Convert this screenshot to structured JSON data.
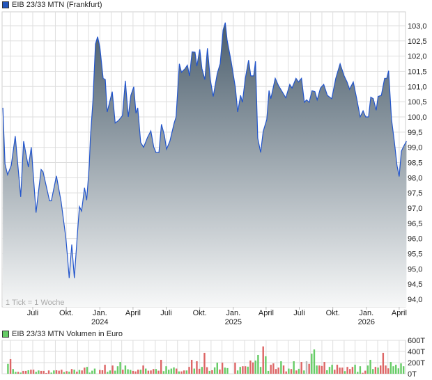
{
  "chart_data": [
    {
      "type": "area",
      "title": "EIB 23/33 MTN (Frankfurt)",
      "note": "1 Tick = 1 Woche",
      "colors": {
        "line": "#2255cc",
        "fill_top": "#4a5d6c",
        "fill_bottom": "#f7f8f8",
        "legend": "#2255bb"
      },
      "ylim": [
        93.75,
        103.45
      ],
      "yticks": [
        "94,0",
        "94,5",
        "95,0",
        "95,5",
        "96,0",
        "96,5",
        "97,0",
        "97,5",
        "98,0",
        "98,5",
        "99,0",
        "99,5",
        "100,0",
        "100,5",
        "101,0",
        "101,5",
        "102,0",
        "102,5",
        "103,0"
      ],
      "xticks": [
        {
          "date": "2023-07-01",
          "label": "Juli",
          "year": ""
        },
        {
          "date": "2023-10-01",
          "label": "Okt.",
          "year": ""
        },
        {
          "date": "2024-01-01",
          "label": "Jan.",
          "year": "2024"
        },
        {
          "date": "2024-04-01",
          "label": "April",
          "year": ""
        },
        {
          "date": "2024-07-01",
          "label": "Juli",
          "year": ""
        },
        {
          "date": "2024-10-01",
          "label": "Okt.",
          "year": ""
        },
        {
          "date": "2025-01-01",
          "label": "Jan.",
          "year": "2025"
        },
        {
          "date": "2025-04-01",
          "label": "April",
          "year": ""
        },
        {
          "date": "2025-07-01",
          "label": "Juli",
          "year": ""
        },
        {
          "date": "2025-10-01",
          "label": "Okt.",
          "year": ""
        },
        {
          "date": "2026-01-01",
          "label": "Jan.",
          "year": "2026"
        },
        {
          "date": "2026-04-01",
          "label": "April",
          "year": ""
        }
      ],
      "grid": true,
      "series": [
        [
          "2023-04-10",
          100.3
        ],
        [
          "2023-04-16",
          98.45
        ],
        [
          "2023-04-23",
          98.1
        ],
        [
          "2023-05-03",
          98.4
        ],
        [
          "2023-05-14",
          99.37
        ],
        [
          "2023-05-29",
          97.37
        ],
        [
          "2023-06-06",
          99.2
        ],
        [
          "2023-06-19",
          98.35
        ],
        [
          "2023-06-27",
          99.0
        ],
        [
          "2023-07-10",
          96.85
        ],
        [
          "2023-07-24",
          98.27
        ],
        [
          "2023-07-29",
          98.2
        ],
        [
          "2023-08-16",
          97.24
        ],
        [
          "2023-08-21",
          97.24
        ],
        [
          "2023-09-04",
          98.06
        ],
        [
          "2023-09-17",
          97.2
        ],
        [
          "2023-09-30",
          96.0
        ],
        [
          "2023-10-05",
          95.3
        ],
        [
          "2023-10-09",
          94.7
        ],
        [
          "2023-10-16",
          95.8
        ],
        [
          "2023-10-23",
          94.7
        ],
        [
          "2023-11-01",
          96.25
        ],
        [
          "2023-11-06",
          97.05
        ],
        [
          "2023-11-12",
          96.9
        ],
        [
          "2023-11-20",
          97.67
        ],
        [
          "2023-11-26",
          97.26
        ],
        [
          "2023-12-03",
          98.4
        ],
        [
          "2023-12-06",
          99.3
        ],
        [
          "2023-12-13",
          100.5
        ],
        [
          "2023-12-20",
          102.4
        ],
        [
          "2023-12-26",
          102.64
        ],
        [
          "2024-01-01",
          102.3
        ],
        [
          "2024-01-10",
          101.27
        ],
        [
          "2024-01-16",
          101.23
        ],
        [
          "2024-01-21",
          100.16
        ],
        [
          "2024-02-04",
          100.83
        ],
        [
          "2024-02-12",
          99.8
        ],
        [
          "2024-02-21",
          99.88
        ],
        [
          "2024-03-03",
          100.04
        ],
        [
          "2024-03-11",
          101.19
        ],
        [
          "2024-03-19",
          100.0
        ],
        [
          "2024-03-26",
          100.71
        ],
        [
          "2024-04-03",
          100.99
        ],
        [
          "2024-04-09",
          100.12
        ],
        [
          "2024-04-14",
          100.3
        ],
        [
          "2024-04-22",
          99.16
        ],
        [
          "2024-04-30",
          99.0
        ],
        [
          "2024-05-11",
          99.33
        ],
        [
          "2024-05-20",
          99.54
        ],
        [
          "2024-05-28",
          99.0
        ],
        [
          "2024-06-03",
          98.83
        ],
        [
          "2024-06-11",
          98.83
        ],
        [
          "2024-06-18",
          99.76
        ],
        [
          "2024-06-26",
          99.4
        ],
        [
          "2024-07-02",
          98.94
        ],
        [
          "2024-07-11",
          99.2
        ],
        [
          "2024-07-23",
          99.8
        ],
        [
          "2024-07-28",
          100.0
        ],
        [
          "2024-08-06",
          101.75
        ],
        [
          "2024-08-12",
          101.47
        ],
        [
          "2024-08-22",
          101.59
        ],
        [
          "2024-08-28",
          101.7
        ],
        [
          "2024-09-03",
          101.35
        ],
        [
          "2024-09-10",
          102.14
        ],
        [
          "2024-09-18",
          102.13
        ],
        [
          "2024-09-23",
          101.67
        ],
        [
          "2024-10-01",
          102.22
        ],
        [
          "2024-10-07",
          101.59
        ],
        [
          "2024-10-15",
          101.23
        ],
        [
          "2024-10-22",
          102.26
        ],
        [
          "2024-10-30",
          101.23
        ],
        [
          "2024-11-07",
          100.67
        ],
        [
          "2024-11-18",
          101.43
        ],
        [
          "2024-11-26",
          101.75
        ],
        [
          "2024-12-04",
          102.86
        ],
        [
          "2024-12-10",
          103.1
        ],
        [
          "2024-12-15",
          102.54
        ],
        [
          "2024-12-26",
          101.83
        ],
        [
          "2025-01-07",
          100.95
        ],
        [
          "2025-01-13",
          100.16
        ],
        [
          "2025-01-21",
          100.71
        ],
        [
          "2025-01-26",
          100.48
        ],
        [
          "2025-02-03",
          101.27
        ],
        [
          "2025-02-12",
          101.87
        ],
        [
          "2025-02-18",
          101.35
        ],
        [
          "2025-02-26",
          101.35
        ],
        [
          "2025-03-03",
          101.83
        ],
        [
          "2025-03-09",
          99.3
        ],
        [
          "2025-03-17",
          98.83
        ],
        [
          "2025-03-24",
          99.52
        ],
        [
          "2025-04-03",
          99.92
        ],
        [
          "2025-04-09",
          100.87
        ],
        [
          "2025-04-14",
          100.6
        ],
        [
          "2025-04-26",
          101.27
        ],
        [
          "2025-05-05",
          101.03
        ],
        [
          "2025-05-25",
          100.63
        ],
        [
          "2025-06-05",
          101.07
        ],
        [
          "2025-06-11",
          100.95
        ],
        [
          "2025-06-22",
          101.27
        ],
        [
          "2025-06-29",
          101.15
        ],
        [
          "2025-07-07",
          101.27
        ],
        [
          "2025-07-15",
          100.48
        ],
        [
          "2025-07-21",
          100.56
        ],
        [
          "2025-07-28",
          100.48
        ],
        [
          "2025-08-05",
          100.86
        ],
        [
          "2025-08-13",
          100.83
        ],
        [
          "2025-08-19",
          100.56
        ],
        [
          "2025-08-28",
          100.95
        ],
        [
          "2025-09-06",
          101.07
        ],
        [
          "2025-09-16",
          100.71
        ],
        [
          "2025-09-28",
          100.6
        ],
        [
          "2025-10-09",
          101.27
        ],
        [
          "2025-10-21",
          101.75
        ],
        [
          "2025-11-01",
          101.35
        ],
        [
          "2025-11-09",
          101.15
        ],
        [
          "2025-11-16",
          100.91
        ],
        [
          "2025-11-26",
          101.15
        ],
        [
          "2025-12-05",
          100.63
        ],
        [
          "2025-12-15",
          100.0
        ],
        [
          "2025-12-23",
          100.2
        ],
        [
          "2025-12-30",
          100.0
        ],
        [
          "2026-01-07",
          100.0
        ],
        [
          "2026-01-13",
          100.65
        ],
        [
          "2026-01-20",
          100.6
        ],
        [
          "2026-01-28",
          100.22
        ],
        [
          "2026-02-02",
          100.67
        ],
        [
          "2026-02-11",
          100.71
        ],
        [
          "2026-02-20",
          101.27
        ],
        [
          "2026-02-26",
          101.27
        ],
        [
          "2026-03-03",
          101.52
        ],
        [
          "2026-03-11",
          99.92
        ],
        [
          "2026-03-19",
          99.16
        ],
        [
          "2026-03-26",
          98.4
        ],
        [
          "2026-04-01",
          98.04
        ],
        [
          "2026-04-07",
          98.87
        ],
        [
          "2026-04-14",
          99.05
        ],
        [
          "2026-04-21",
          99.2
        ]
      ]
    },
    {
      "type": "bar",
      "title": "EIB 23/33 MTN Volumen in Euro",
      "colors": {
        "up": "#66cc66",
        "down": "#dd6666",
        "neutral": "#bbbbbb",
        "legend": "#66cc66"
      },
      "ylim": [
        0,
        600
      ],
      "yticks": [
        "0T",
        "200T",
        "400T",
        "600T"
      ],
      "unit": "T",
      "grid": true,
      "weeks_start": [
        "2023-04-24"
      ],
      "values": [
        178,
        262,
        85,
        34,
        34,
        21,
        51,
        51,
        63,
        72,
        72,
        34,
        59,
        51,
        51,
        13,
        59,
        21,
        59,
        63,
        55,
        72,
        30,
        47,
        38,
        85,
        72,
        38,
        68,
        59,
        110,
        123,
        21,
        55,
        93,
        null,
        68,
        63,
        161,
        34,
        59,
        148,
        55,
        135,
        212,
        72,
        148,
        80,
        68,
        51,
        42,
        72,
        72,
        148,
        93,
        55,
        59,
        85,
        85,
        55,
        250,
        47,
        135,
        72,
        93,
        114,
        93,
        42,
        42,
        59,
        59,
        123,
        250,
        93,
        224,
        89,
        123,
        376,
        118,
        51,
        63,
        114,
        199,
        76,
        199,
        110,
        102,
        null,
        null,
        199,
        59,
        123,
        135,
        135,
        127,
        237,
        203,
        237,
        338,
        123,
        491,
        313,
        51,
        161,
        186,
        85,
        110,
        224,
        148,
        42,
        93,
        85,
        224,
        59,
        89,
        212,
        59,
        224,
        178,
        360,
        436,
        148,
        148,
        140,
        212,
        63,
        123,
        161,
        72,
        161,
        110,
        110,
        47,
        123,
        85,
        123,
        161,
        34,
        135,
        17,
        55,
        148,
        250,
        85,
        123,
        110,
        148,
        376,
        148,
        97,
        212,
        135,
        161,
        97,
        186,
        135
      ],
      "direction": "drggrgrrgrrggrrrrggrrrgrgrgrgrrgggg-rrrggrgggrgggrrrgrgrrrgrrgggggrgrrgrrgrrgrrgrggrr--rgrggrrgrrgggrggrrrrgrrgrgrgrgnrgggrrrgggrrrrgrrrgggrrgggrgrrrrgggg"
    }
  ]
}
